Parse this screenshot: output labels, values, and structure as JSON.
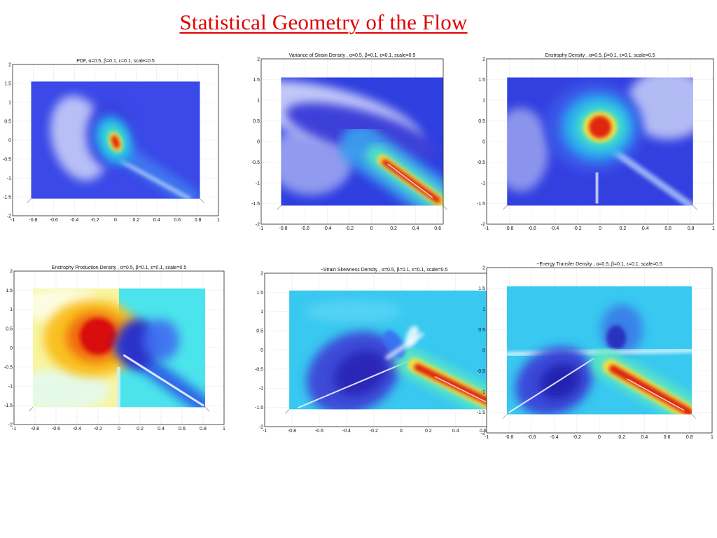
{
  "page": {
    "title": "Statistical Geometry of the Flow"
  },
  "colors": {
    "title": "#e00000",
    "colormap": "jet"
  },
  "chart_data": [
    {
      "type": "heatmap",
      "title": "PDF,     α=0.5, β=0.1, ε=0.1, scale=0.5",
      "xlim": [
        -1,
        1
      ],
      "ylim": [
        -2,
        2
      ],
      "xticks": [
        "-1",
        "-0.8",
        "-0.6",
        "-0.4",
        "-0.2",
        "0",
        "0.2",
        "0.4",
        "0.6",
        "0.8",
        "1"
      ],
      "yticks": [
        "2",
        "1.5",
        "1",
        "0.5",
        "0",
        "-0.5",
        "-1",
        "-1.5",
        "-2"
      ],
      "data_extent": {
        "x": [
          -0.82,
          0.82
        ],
        "y": [
          -1.55,
          1.55
        ]
      },
      "grid": true,
      "features": [
        {
          "kind": "peak",
          "x": 0.0,
          "y": -0.05,
          "level": 1.0
        },
        {
          "kind": "ridge",
          "from": [
            0.05,
            -0.5
          ],
          "to": [
            0.72,
            -1.5
          ],
          "level": 0.2
        }
      ]
    },
    {
      "type": "heatmap",
      "title": "Variance of Strain Density    ,      α=0.5, β=0.1, ε=0.1, scale=0.5",
      "xlim": [
        -1,
        0.65
      ],
      "ylim": [
        -2,
        2
      ],
      "xticks": [
        "-1",
        "-0.8",
        "-0.6",
        "-0.4",
        "-0.2",
        "0",
        "0.2",
        "0.4",
        "0.6"
      ],
      "yticks": [
        "2",
        "1.5",
        "1",
        "0.5",
        "0",
        "-0.5",
        "-1",
        "-1.5",
        "-2"
      ],
      "data_extent": {
        "x": [
          -0.82,
          0.65
        ],
        "y": [
          -1.55,
          1.55
        ]
      },
      "grid": true,
      "features": [
        {
          "kind": "ridge",
          "from": [
            0.05,
            -0.45
          ],
          "to": [
            0.62,
            -1.45
          ],
          "level": 1.0
        }
      ]
    },
    {
      "type": "heatmap",
      "title": "Enstrophy  Density    ,     α=0.5, β=0.1, ε=0.1, scale=0.5",
      "xlim": [
        -1,
        1
      ],
      "ylim": [
        -2,
        2
      ],
      "xticks": [
        "-1",
        "-0.8",
        "-0.6",
        "-0.4",
        "-0.2",
        "0",
        "0.2",
        "0.4",
        "0.6",
        "0.8",
        "1"
      ],
      "yticks": [
        "2",
        "1.5",
        "1",
        "0.5",
        "0",
        "-0.5",
        "-1",
        "-1.5",
        "-2"
      ],
      "data_extent": {
        "x": [
          -0.82,
          0.82
        ],
        "y": [
          -1.55,
          1.55
        ]
      },
      "grid": true,
      "features": [
        {
          "kind": "peak",
          "x": 0.0,
          "y": 0.35,
          "level": 1.0
        }
      ]
    },
    {
      "type": "heatmap",
      "title": "Enstrophy Production Density    ,     α=0.5, β=0.1, ε=0.1, scale=0.5",
      "xlim": [
        -1,
        1
      ],
      "ylim": [
        -2,
        2
      ],
      "xticks": [
        "-1",
        "-0.8",
        "-0.6",
        "-0.4",
        "-0.2",
        "0",
        "0.2",
        "0.4",
        "0.6",
        "0.8",
        "1"
      ],
      "yticks": [
        "2",
        "1.5",
        "1",
        "0.5",
        "0",
        "-0.5",
        "-1",
        "-1.5",
        "-2"
      ],
      "data_extent": {
        "x": [
          -0.82,
          0.82
        ],
        "y": [
          -1.55,
          1.55
        ]
      },
      "grid": true,
      "features": [
        {
          "kind": "peak",
          "x": -0.25,
          "y": 0.3,
          "level": 1.0
        },
        {
          "kind": "trough",
          "x": 0.15,
          "y": 0.1,
          "level": 0.0
        }
      ]
    },
    {
      "type": "heatmap",
      "title": "−Strain Skewness Density    ,     α=0.5, β=0.1, ε=0.1, scale=0.5",
      "xlim": [
        -1,
        0.75
      ],
      "ylim": [
        -2,
        2
      ],
      "xticks": [
        "-1",
        "-0.8",
        "-0.6",
        "-0.4",
        "-0.2",
        "0",
        "0.2",
        "0.4",
        "0.6"
      ],
      "yticks": [
        "2",
        "1.5",
        "1",
        "0.5",
        "0",
        "-0.5",
        "-1",
        "-1.5",
        "-2"
      ],
      "data_extent": {
        "x": [
          -0.82,
          0.72
        ],
        "y": [
          -1.55,
          1.55
        ]
      },
      "grid": true,
      "features": [
        {
          "kind": "ridge",
          "from": [
            0.1,
            -0.45
          ],
          "to": [
            0.7,
            -1.45
          ],
          "level": 1.0
        },
        {
          "kind": "trough",
          "x": -0.35,
          "y": -0.6,
          "level": 0.0
        }
      ]
    },
    {
      "type": "heatmap",
      "title": "−Energy Transfer Density    ,     α=0.5, β=0.1, ε=0.1, scale=0.5",
      "xlim": [
        -1,
        1
      ],
      "ylim": [
        -2,
        2
      ],
      "xticks": [
        "-1",
        "-0.8",
        "-0.6",
        "-0.4",
        "-0.2",
        "0",
        "0.2",
        "0.4",
        "0.6",
        "0.8",
        "1"
      ],
      "yticks": [
        "2",
        "1.5",
        "1",
        "0.5",
        "0",
        "-0.5",
        "-1",
        "-1.5",
        "-2"
      ],
      "data_extent": {
        "x": [
          -0.82,
          0.82
        ],
        "y": [
          -1.55,
          1.55
        ]
      },
      "grid": true,
      "features": [
        {
          "kind": "ridge",
          "from": [
            0.1,
            -0.45
          ],
          "to": [
            0.8,
            -1.5
          ],
          "level": 1.0
        },
        {
          "kind": "trough",
          "x": -0.4,
          "y": -0.75,
          "level": 0.0
        }
      ]
    }
  ]
}
